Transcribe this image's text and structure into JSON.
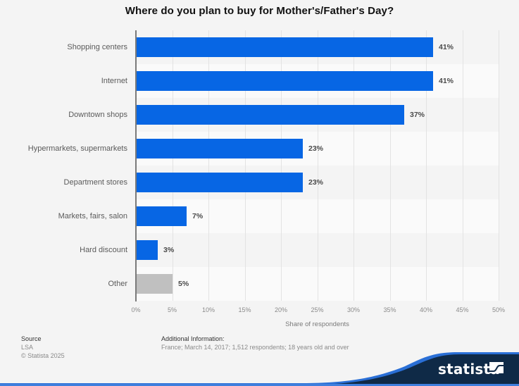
{
  "title": "Where do you plan to buy for Mother's/Father's Day?",
  "chart_data": {
    "type": "bar",
    "orientation": "horizontal",
    "title": "Where do you plan to buy for Mother's/Father's Day?",
    "categories": [
      "Shopping centers",
      "Internet",
      "Downtown shops",
      "Hypermarkets, supermarkets",
      "Department stores",
      "Markets, fairs, salon",
      "Hard discount",
      "Other"
    ],
    "values": [
      41,
      41,
      37,
      23,
      23,
      7,
      3,
      5
    ],
    "value_labels": [
      "41%",
      "41%",
      "37%",
      "23%",
      "23%",
      "7%",
      "3%",
      "5%"
    ],
    "bar_colors": [
      "#0766e4",
      "#0766e4",
      "#0766e4",
      "#0766e4",
      "#0766e4",
      "#0766e4",
      "#0766e4",
      "#c0c0c0"
    ],
    "xlabel": "Share of respondents",
    "ylabel": "",
    "xlim": [
      0,
      50
    ],
    "x_ticks": [
      "0%",
      "5%",
      "10%",
      "15%",
      "20%",
      "25%",
      "30%",
      "35%",
      "40%",
      "45%",
      "50%"
    ],
    "grid": true,
    "legend": null
  },
  "footer": {
    "source_heading": "Source",
    "source_name": "LSA",
    "copyright": "© Statista 2025",
    "additional_heading": "Additional Information:",
    "additional_text": "France; March 14, 2017; 1,512 respondents; 18 years old and over"
  },
  "brand": {
    "name": "statista",
    "navy": "#0f2a47",
    "accent_blue": "#2a6fd6"
  },
  "colors": {
    "bar_primary": "#0766e4",
    "bar_other": "#c0c0c0",
    "background": "#f4f4f4"
  }
}
